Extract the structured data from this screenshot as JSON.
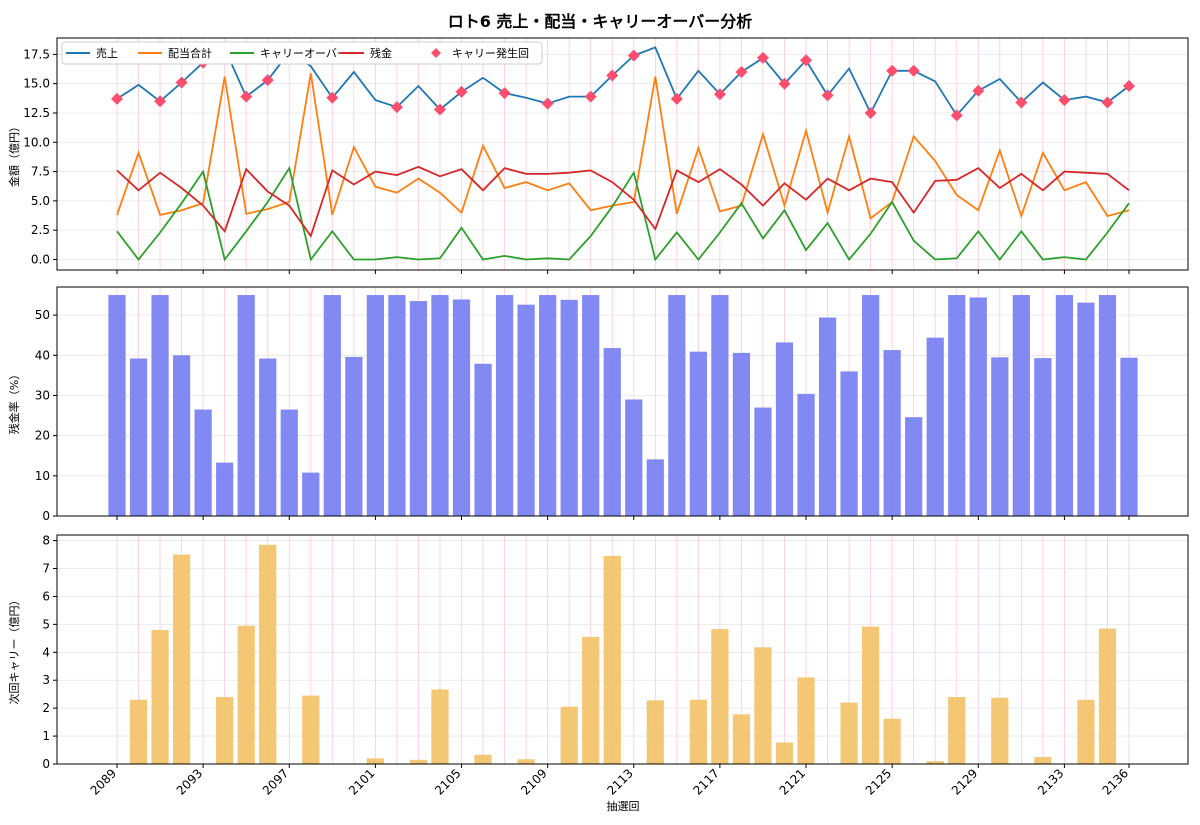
{
  "title": "ロト6 売上・配当・キャリーオーバー分析",
  "xlabel": "抽選回",
  "x_ticks": [
    "2089",
    "2093",
    "2097",
    "2101",
    "2105",
    "2109",
    "2113",
    "2117",
    "2121",
    "2125",
    "2129",
    "2133",
    "2136"
  ],
  "colors": {
    "sales": "#1f77b4",
    "payout": "#ff7f0e",
    "carry": "#2ca02c",
    "residual": "#d62728",
    "marker": "#ff4d6d",
    "ratio_bar": "#7b83f2",
    "carry_bar": "#f2c46d",
    "vgrid": "#ffc8d8",
    "hgrid": "#e6e6e6"
  },
  "chart_data": [
    {
      "type": "line",
      "ylabel": "金額（億円）",
      "ylim": [
        -0.9,
        18.9
      ],
      "yticks": [
        "0.0",
        "2.5",
        "5.0",
        "7.5",
        "10.0",
        "12.5",
        "15.0",
        "17.5"
      ],
      "legend_position": "top-left",
      "draws": [
        "2089",
        "2090",
        "2091",
        "2092",
        "2093",
        "2094",
        "2095",
        "2096",
        "2097",
        "2098",
        "2099",
        "2100",
        "2101",
        "2102",
        "2103",
        "2104",
        "2105",
        "2106",
        "2107",
        "2108",
        "2109",
        "2110",
        "2111",
        "2112",
        "2113",
        "2114",
        "2115",
        "2116",
        "2117",
        "2118",
        "2119",
        "2120",
        "2121",
        "2122",
        "2123",
        "2124",
        "2125",
        "2126",
        "2127",
        "2128",
        "2129",
        "2130",
        "2131",
        "2132",
        "2133",
        "2134",
        "2135",
        "2136"
      ],
      "series": [
        {
          "name": "売上",
          "key": "sales",
          "values": [
            13.7,
            14.9,
            13.5,
            15.1,
            16.8,
            18.0,
            13.9,
            15.3,
            17.7,
            16.5,
            13.8,
            16.0,
            13.6,
            13.0,
            14.8,
            12.8,
            14.3,
            15.5,
            14.2,
            13.8,
            13.3,
            13.9,
            13.9,
            15.7,
            17.4,
            18.1,
            13.7,
            16.1,
            14.1,
            16.0,
            17.2,
            15.0,
            17.0,
            14.0,
            16.3,
            12.5,
            16.1,
            16.1,
            15.2,
            12.3,
            14.4,
            15.4,
            13.4,
            15.1,
            13.6,
            13.9,
            13.4,
            14.8
          ]
        },
        {
          "name": "配当合計",
          "key": "payout",
          "values": [
            3.8,
            9.1,
            3.8,
            4.2,
            4.8,
            15.6,
            3.9,
            4.3,
            4.9,
            15.9,
            3.8,
            9.6,
            6.2,
            5.7,
            6.9,
            5.7,
            4.0,
            9.7,
            6.1,
            6.6,
            5.9,
            6.5,
            4.2,
            4.6,
            4.9,
            15.6,
            3.9,
            9.5,
            4.1,
            4.6,
            10.7,
            4.6,
            11.0,
            4.0,
            10.5,
            3.5,
            4.9,
            10.5,
            8.4,
            5.5,
            4.2,
            9.3,
            3.7,
            9.1,
            5.9,
            6.6,
            3.7,
            4.2
          ]
        },
        {
          "name": "キャリーオーバー",
          "key": "carry",
          "values": [
            2.4,
            0,
            2.3,
            4.8,
            7.5,
            0,
            2.4,
            4.9,
            7.8,
            0,
            2.4,
            0,
            0,
            0.2,
            0,
            0.1,
            2.7,
            0,
            0.3,
            0,
            0.1,
            0,
            2.0,
            4.5,
            7.4,
            0,
            2.3,
            0,
            2.3,
            4.8,
            1.8,
            4.2,
            0.8,
            3.1,
            0,
            2.2,
            4.9,
            1.6,
            0,
            0.1,
            2.4,
            0,
            2.4,
            0,
            0.2,
            0,
            2.3,
            4.8
          ]
        },
        {
          "name": "残金",
          "key": "residual",
          "values": [
            7.6,
            5.9,
            7.4,
            6.1,
            4.6,
            2.4,
            7.7,
            5.8,
            4.6,
            2.0,
            7.6,
            6.4,
            7.5,
            7.2,
            7.9,
            7.1,
            7.7,
            5.9,
            7.8,
            7.3,
            7.3,
            7.4,
            7.6,
            6.6,
            5.1,
            2.6,
            7.6,
            6.6,
            7.7,
            6.4,
            4.6,
            6.5,
            5.1,
            6.9,
            5.9,
            6.9,
            6.6,
            4.0,
            6.7,
            6.8,
            7.8,
            6.1,
            7.3,
            5.9,
            7.5,
            7.4,
            7.3,
            5.9
          ]
        }
      ],
      "marker_series": {
        "name": "キャリー発生回",
        "key": "sales",
        "indices": [
          0,
          2,
          3,
          4,
          6,
          7,
          8,
          10,
          13,
          15,
          16,
          18,
          20,
          22,
          23,
          24,
          26,
          28,
          29,
          30,
          31,
          32,
          33,
          35,
          36,
          37,
          39,
          40,
          42,
          44,
          46,
          47
        ]
      }
    },
    {
      "type": "bar",
      "ylabel": "残金率（%）",
      "ylim": [
        0,
        57
      ],
      "yticks": [
        "0",
        "10",
        "20",
        "30",
        "40",
        "50"
      ],
      "values": [
        55.0,
        39.2,
        55.0,
        40.0,
        26.5,
        13.3,
        55.0,
        39.2,
        26.5,
        10.8,
        55.0,
        39.6,
        55.0,
        55.0,
        53.5,
        55.0,
        53.9,
        37.9,
        55.0,
        52.6,
        55.0,
        53.8,
        55.0,
        41.8,
        29.0,
        14.1,
        55.0,
        40.9,
        55.0,
        40.6,
        27.0,
        43.2,
        30.4,
        49.4,
        36.0,
        55.0,
        41.3,
        24.6,
        44.4,
        55.0,
        54.4,
        39.5,
        55.0,
        39.3,
        55.0,
        53.1,
        55.0,
        39.4
      ]
    },
    {
      "type": "bar",
      "ylabel": "次回キャリー（億円）",
      "ylim": [
        0,
        8.2
      ],
      "yticks": [
        "0",
        "1",
        "2",
        "3",
        "4",
        "5",
        "6",
        "7",
        "8"
      ],
      "values": [
        0,
        2.3,
        4.8,
        7.5,
        0,
        2.4,
        4.95,
        7.85,
        0,
        2.45,
        0,
        0,
        0.2,
        0,
        0.15,
        2.67,
        0,
        0.33,
        0,
        0.17,
        0,
        2.05,
        4.55,
        7.45,
        0,
        2.28,
        0,
        2.3,
        4.83,
        1.78,
        4.18,
        0.77,
        3.1,
        0,
        2.2,
        4.92,
        1.62,
        0,
        0.1,
        2.4,
        0,
        2.37,
        0,
        0.25,
        0,
        2.3,
        4.85,
        0
      ]
    }
  ]
}
